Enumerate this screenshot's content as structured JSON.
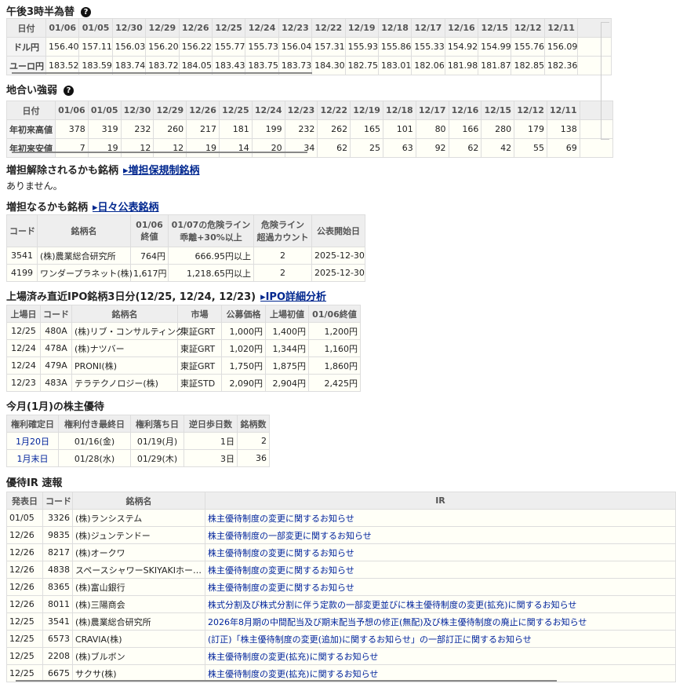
{
  "fx": {
    "title": "午後3時半為替",
    "header": "日付",
    "dates": [
      "01/06",
      "01/05",
      "12/30",
      "12/29",
      "12/26",
      "12/25",
      "12/24",
      "12/23",
      "12/22",
      "12/19",
      "12/18",
      "12/17",
      "12/16",
      "12/15",
      "12/12",
      "12/11"
    ],
    "rows": [
      {
        "label": "ドル円",
        "values": [
          "156.40",
          "157.11",
          "156.03",
          "156.20",
          "156.22",
          "155.77",
          "155.73",
          "156.04",
          "157.31",
          "155.93",
          "155.86",
          "155.33",
          "154.92",
          "154.99",
          "155.76",
          "156.09"
        ]
      },
      {
        "label": "ユーロ円",
        "values": [
          "183.52",
          "183.59",
          "183.74",
          "183.72",
          "184.05",
          "183.43",
          "183.75",
          "183.73",
          "184.30",
          "182.75",
          "183.01",
          "182.06",
          "181.98",
          "181.87",
          "182.85",
          "182.36"
        ]
      }
    ]
  },
  "strength": {
    "title": "地合い強弱",
    "header": "日付",
    "dates": [
      "01/06",
      "01/05",
      "12/30",
      "12/29",
      "12/26",
      "12/25",
      "12/24",
      "12/23",
      "12/22",
      "12/19",
      "12/18",
      "12/17",
      "12/16",
      "12/15",
      "12/12",
      "12/11"
    ],
    "rows": [
      {
        "label": "年初来高値",
        "values": [
          "378",
          "319",
          "232",
          "260",
          "217",
          "181",
          "199",
          "232",
          "262",
          "165",
          "101",
          "80",
          "166",
          "280",
          "179",
          "138"
        ]
      },
      {
        "label": "年初来安値",
        "values": [
          "7",
          "19",
          "12",
          "12",
          "19",
          "14",
          "20",
          "34",
          "62",
          "25",
          "63",
          "92",
          "62",
          "42",
          "55",
          "69"
        ]
      }
    ]
  },
  "release": {
    "title": "増担解除されるかも銘柄",
    "link": "▸増担保規制銘柄",
    "empty": "ありません。"
  },
  "margin": {
    "title": "増担なるかも銘柄",
    "link": "▸日々公表銘柄",
    "headers": [
      "コード",
      "銘柄名",
      "01/06\n終値",
      "01/07の危険ライン\n乖離+30%以上",
      "危険ライン\n超過カウント",
      "公表開始日"
    ],
    "rows": [
      [
        "3541",
        "(株)農業総合研究所",
        "764円",
        "666.95円以上",
        "2",
        "2025-12-30"
      ],
      [
        "4199",
        "ワンダープラネット(株)",
        "1,617円",
        "1,218.65円以上",
        "2",
        "2025-12-30"
      ]
    ]
  },
  "ipo": {
    "title": "上場済み直近IPO銘柄3日分(12/25, 12/24, 12/23)",
    "link": "▸IPO詳細分析",
    "headers": [
      "上場日",
      "コード",
      "銘柄名",
      "市場",
      "公募価格",
      "上場初値",
      "01/06終値"
    ],
    "rows": [
      [
        "12/25",
        "480A",
        "(株)リブ・コンサルティング",
        "東証GRT",
        "1,000円",
        "1,400円",
        "1,200円"
      ],
      [
        "12/24",
        "478A",
        "(株)ナツバー",
        "東証GRT",
        "1,020円",
        "1,344円",
        "1,160円"
      ],
      [
        "12/24",
        "479A",
        "PRONI(株)",
        "東証GRT",
        "1,750円",
        "1,875円",
        "1,860円"
      ],
      [
        "12/23",
        "483A",
        "テラテクノロジー(株)",
        "東証STD",
        "2,090円",
        "2,904円",
        "2,425円"
      ]
    ]
  },
  "yutai": {
    "title": "今月(1月)の株主優待",
    "headers": [
      "権利確定日",
      "権利付き最終日",
      "権利落ち日",
      "逆日歩日数",
      "銘柄数"
    ],
    "rows": [
      [
        "1月20日",
        "01/16(金)",
        "01/19(月)",
        "1日",
        "2"
      ],
      [
        "1月末日",
        "01/28(水)",
        "01/29(木)",
        "3日",
        "36"
      ]
    ]
  },
  "ir": {
    "title": "優待IR 速報",
    "headers": [
      "発表日",
      "コード",
      "銘柄名",
      "IR"
    ],
    "rows": [
      [
        "01/05",
        "3326",
        "(株)ランシステム",
        "株主優待制度の変更に関するお知らせ"
      ],
      [
        "12/26",
        "9835",
        "(株)ジュンテンドー",
        "株主優待制度の一部変更に関するお知らせ"
      ],
      [
        "12/26",
        "8217",
        "(株)オークワ",
        "株主優待制度の変更に関するお知らせ"
      ],
      [
        "12/26",
        "4838",
        "スペースシャワーSKIYAKIホー…",
        "株主優待制度の変更に関するお知らせ"
      ],
      [
        "12/26",
        "8365",
        "(株)富山銀行",
        "株主優待制度の変更に関するお知らせ"
      ],
      [
        "12/26",
        "8011",
        "(株)三陽商会",
        "株式分割及び株式分割に伴う定款の一部変更並びに株主優待制度の変更(拡充)に関するお知らせ"
      ],
      [
        "12/25",
        "3541",
        "(株)農業総合研究所",
        "2026年8月期の中間配当及び期末配当予想の修正(無配)及び株主優待制度の廃止に関するお知らせ"
      ],
      [
        "12/25",
        "6573",
        "CRAVIA(株)",
        "(訂正)「株主優待制度の変更(追加)に関するお知らせ」の一部訂正に関するお知らせ"
      ],
      [
        "12/25",
        "2208",
        "(株)ブルボン",
        "株主優待制度の変更(拡充)に関するお知らせ"
      ],
      [
        "12/25",
        "6675",
        "サクサ(株)",
        "株主優待制度の変更(拡充)に関するお知らせ"
      ]
    ]
  },
  "colors": {
    "header_bg": "#eeeeee",
    "cell_bg": "#fffff7",
    "link": "#00239c"
  }
}
